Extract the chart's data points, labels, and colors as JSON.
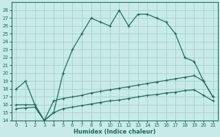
{
  "xlabel": "Humidex (Indice chaleur)",
  "bg_color": "#c8eae8",
  "grid_color": "#a8d4d2",
  "line_color": "#1a6b5a",
  "xlim": [
    -0.5,
    21.5
  ],
  "ylim": [
    14,
    29
  ],
  "xticks": [
    0,
    1,
    2,
    3,
    4,
    5,
    6,
    7,
    8,
    9,
    10,
    11,
    12,
    13,
    14,
    15,
    16,
    17,
    18,
    19,
    20,
    21
  ],
  "yticks": [
    14,
    15,
    16,
    17,
    18,
    19,
    20,
    21,
    22,
    23,
    24,
    25,
    26,
    27,
    28
  ],
  "curve1_x": [
    0,
    1,
    2,
    3,
    4,
    5,
    6,
    7,
    8,
    9,
    10,
    11,
    12,
    13,
    14,
    15,
    16,
    17,
    18,
    19,
    20,
    21
  ],
  "curve1_y": [
    18,
    19,
    16,
    14,
    15,
    20,
    23,
    25,
    27,
    26.5,
    26,
    28,
    26,
    27.5,
    27.5,
    27,
    26.5,
    25,
    22,
    21.5,
    19,
    17
  ],
  "curve2_x": [
    0,
    1,
    2,
    3,
    4,
    5,
    6,
    7,
    8,
    9,
    10,
    11,
    12,
    13,
    14,
    15,
    16,
    17,
    18,
    19,
    20,
    21
  ],
  "curve2_y": [
    16,
    16,
    16,
    14,
    16.5,
    16.8,
    17,
    17.2,
    17.5,
    17.7,
    17.9,
    18.1,
    18.3,
    18.5,
    18.7,
    18.9,
    19.1,
    19.3,
    19.5,
    19.7,
    19.0,
    17.0
  ],
  "curve3_x": [
    0,
    1,
    2,
    3,
    4,
    5,
    6,
    7,
    8,
    9,
    10,
    11,
    12,
    13,
    14,
    15,
    16,
    17,
    18,
    19,
    20,
    21
  ],
  "curve3_y": [
    15.5,
    15.6,
    15.7,
    14.0,
    15.0,
    15.5,
    15.7,
    15.9,
    16.1,
    16.3,
    16.5,
    16.6,
    16.8,
    17.0,
    17.2,
    17.3,
    17.5,
    17.6,
    17.8,
    17.9,
    17.2,
    16.5
  ],
  "marker": "+"
}
